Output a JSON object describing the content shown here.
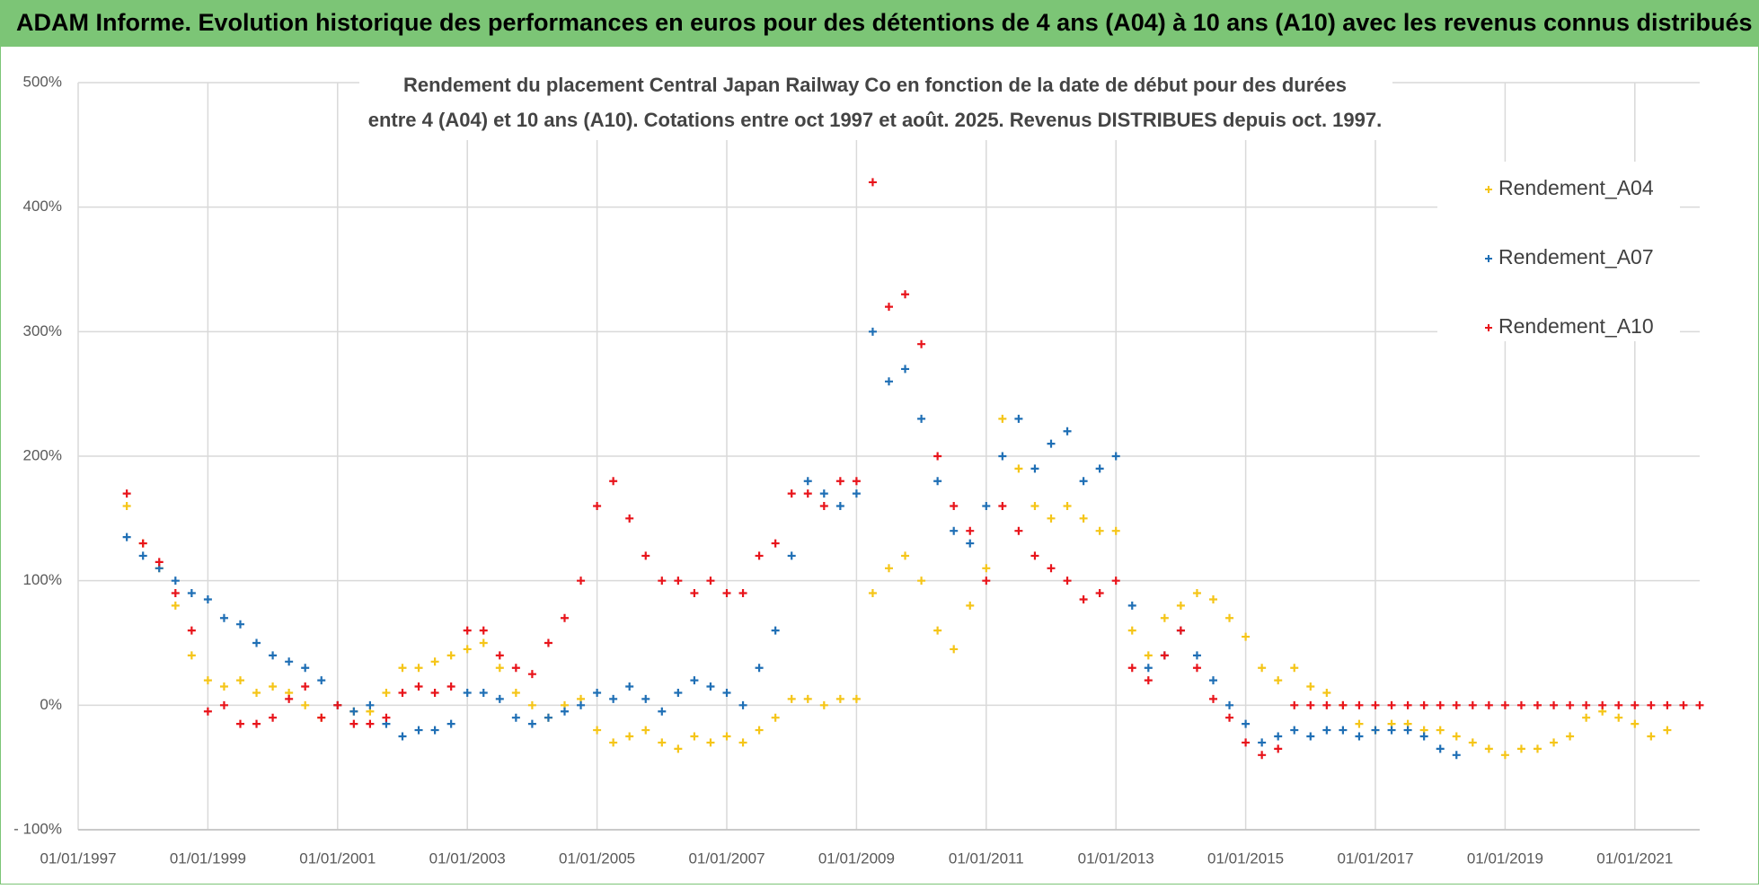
{
  "header": {
    "title": "ADAM Informe. Evolution historique des performances en euros pour des détentions de 4 ans (A04) à 10 ans (A10) avec les revenus connus distribués"
  },
  "chart_data": {
    "type": "scatter",
    "title": "Rendement du placement Central Japan Railway Co en fonction de la date de début pour des durées",
    "subtitle": "entre 4 (A04) et 10 ans (A10).  Cotations entre oct 1997 et août. 2025. Revenus DISTRIBUES depuis oct. 1997.",
    "grid": true,
    "legend": "upper right",
    "xlim": [
      1997,
      2022
    ],
    "xticks": [
      {
        "value": 1997,
        "label": "01/01/1997"
      },
      {
        "value": 1999,
        "label": "01/01/1999"
      },
      {
        "value": 2001,
        "label": "01/01/2001"
      },
      {
        "value": 2003,
        "label": "01/01/2003"
      },
      {
        "value": 2005,
        "label": "01/01/2005"
      },
      {
        "value": 2007,
        "label": "01/01/2007"
      },
      {
        "value": 2009,
        "label": "01/01/2009"
      },
      {
        "value": 2011,
        "label": "01/01/2011"
      },
      {
        "value": 2013,
        "label": "01/01/2013"
      },
      {
        "value": 2015,
        "label": "01/01/2015"
      },
      {
        "value": 2017,
        "label": "01/01/2017"
      },
      {
        "value": 2019,
        "label": "01/01/2019"
      },
      {
        "value": 2021,
        "label": "01/01/2021"
      }
    ],
    "ylim": [
      -100,
      500
    ],
    "yticks": [
      {
        "value": -100,
        "label": "- 100%"
      },
      {
        "value": 0,
        "label": "0%"
      },
      {
        "value": 100,
        "label": "100%"
      },
      {
        "value": 200,
        "label": "200%"
      },
      {
        "value": 300,
        "label": "300%"
      },
      {
        "value": 400,
        "label": "400%"
      },
      {
        "value": 500,
        "label": "500%"
      }
    ],
    "series": [
      {
        "name": "Rendement_A04",
        "color": "#f5c518",
        "x": [
          1997.75,
          1998,
          1998.25,
          1998.5,
          1998.75,
          1999,
          1999.25,
          1999.5,
          1999.75,
          2000,
          2000.25,
          2000.5,
          2000.75,
          2001,
          2001.25,
          2001.5,
          2001.75,
          2002,
          2002.25,
          2002.5,
          2002.75,
          2003,
          2003.25,
          2003.5,
          2003.75,
          2004,
          2004.25,
          2004.5,
          2004.75,
          2005,
          2005.25,
          2005.5,
          2005.75,
          2006,
          2006.25,
          2006.5,
          2006.75,
          2007,
          2007.25,
          2007.5,
          2007.75,
          2008,
          2008.25,
          2008.5,
          2008.75,
          2009,
          2009.25,
          2009.5,
          2009.75,
          2010,
          2010.25,
          2010.5,
          2010.75,
          2011,
          2011.25,
          2011.5,
          2011.75,
          2012,
          2012.25,
          2012.5,
          2012.75,
          2013,
          2013.25,
          2013.5,
          2013.75,
          2014,
          2014.25,
          2014.5,
          2014.75,
          2015,
          2015.25,
          2015.5,
          2015.75,
          2016,
          2016.25,
          2016.5,
          2016.75,
          2017,
          2017.25,
          2017.5,
          2017.75,
          2018,
          2018.25,
          2018.5,
          2018.75,
          2019,
          2019.25,
          2019.5,
          2019.75,
          2020,
          2020.25,
          2020.5,
          2020.75,
          2021,
          2021.25,
          2021.5
        ],
        "values": [
          160,
          130,
          110,
          80,
          40,
          20,
          15,
          20,
          10,
          15,
          10,
          0,
          -10,
          0,
          -5,
          -5,
          10,
          30,
          30,
          35,
          40,
          45,
          50,
          30,
          10,
          0,
          -10,
          0,
          5,
          -20,
          -30,
          -25,
          -20,
          -30,
          -35,
          -25,
          -30,
          -25,
          -30,
          -20,
          -10,
          5,
          5,
          0,
          5,
          5,
          90,
          110,
          120,
          100,
          60,
          45,
          80,
          110,
          230,
          190,
          160,
          150,
          160,
          150,
          140,
          140,
          60,
          40,
          70,
          80,
          90,
          85,
          70,
          55,
          30,
          20,
          30,
          15,
          10,
          0,
          -15,
          -20,
          -15,
          -15,
          -20,
          -20,
          -25,
          -30,
          -35,
          -40,
          -35,
          -35,
          -30,
          -25,
          -10,
          -5,
          -10,
          -15,
          -25,
          -20
        ]
      },
      {
        "name": "Rendement_A07",
        "color": "#1f6fb5",
        "x": [
          1997.75,
          1998,
          1998.25,
          1998.5,
          1998.75,
          1999,
          1999.25,
          1999.5,
          1999.75,
          2000,
          2000.25,
          2000.5,
          2000.75,
          2001,
          2001.25,
          2001.5,
          2001.75,
          2002,
          2002.25,
          2002.5,
          2002.75,
          2003,
          2003.25,
          2003.5,
          2003.75,
          2004,
          2004.25,
          2004.5,
          2004.75,
          2005,
          2005.25,
          2005.5,
          2005.75,
          2006,
          2006.25,
          2006.5,
          2006.75,
          2007,
          2007.25,
          2007.5,
          2007.75,
          2008,
          2008.25,
          2008.5,
          2008.75,
          2009,
          2009.25,
          2009.5,
          2009.75,
          2010,
          2010.25,
          2010.5,
          2010.75,
          2011,
          2011.25,
          2011.5,
          2011.75,
          2012,
          2012.25,
          2012.5,
          2012.75,
          2013,
          2013.25,
          2013.5,
          2013.75,
          2014,
          2014.25,
          2014.5,
          2014.75,
          2015,
          2015.25,
          2015.5,
          2015.75,
          2016,
          2016.25,
          2016.5,
          2016.75,
          2017,
          2017.25,
          2017.5,
          2017.75,
          2018,
          2018.25
        ],
        "values": [
          135,
          120,
          110,
          100,
          90,
          85,
          70,
          65,
          50,
          40,
          35,
          30,
          20,
          0,
          -5,
          0,
          -15,
          -25,
          -20,
          -20,
          -15,
          10,
          10,
          5,
          -10,
          -15,
          -10,
          -5,
          0,
          10,
          5,
          15,
          5,
          -5,
          10,
          20,
          15,
          10,
          0,
          30,
          60,
          120,
          180,
          170,
          160,
          170,
          300,
          260,
          270,
          230,
          180,
          140,
          130,
          160,
          200,
          230,
          190,
          210,
          220,
          180,
          190,
          200,
          80,
          30,
          40,
          60,
          40,
          20,
          0,
          -15,
          -30,
          -25,
          -20,
          -25,
          -20,
          -20,
          -25,
          -20,
          -20,
          -20,
          -25,
          -35,
          -40
        ]
      },
      {
        "name": "Rendement_A10",
        "color": "#e8141b",
        "x": [
          1997.75,
          1998,
          1998.25,
          1998.5,
          1998.75,
          1999,
          1999.25,
          1999.5,
          1999.75,
          2000,
          2000.25,
          2000.5,
          2000.75,
          2001,
          2001.25,
          2001.5,
          2001.75,
          2002,
          2002.25,
          2002.5,
          2002.75,
          2003,
          2003.25,
          2003.5,
          2003.75,
          2004,
          2004.25,
          2004.5,
          2004.75,
          2005,
          2005.25,
          2005.5,
          2005.75,
          2006,
          2006.25,
          2006.5,
          2006.75,
          2007,
          2007.25,
          2007.5,
          2007.75,
          2008,
          2008.25,
          2008.5,
          2008.75,
          2009,
          2009.25,
          2009.5,
          2009.75,
          2010,
          2010.25,
          2010.5,
          2010.75,
          2011,
          2011.25,
          2011.5,
          2011.75,
          2012,
          2012.25,
          2012.5,
          2012.75,
          2013,
          2013.25,
          2013.5,
          2013.75,
          2014,
          2014.25,
          2014.5,
          2014.75,
          2015,
          2015.25,
          2015.5,
          2015.75,
          2016,
          2016.25,
          2016.5,
          2016.75,
          2017,
          2017.25,
          2017.5,
          2017.75,
          2018,
          2018.25,
          2018.5,
          2018.75,
          2019,
          2019.25,
          2019.5,
          2019.75,
          2020,
          2020.25,
          2020.5,
          2020.75,
          2021,
          2021.25,
          2021.5,
          2021.75,
          2022
        ],
        "values": [
          170,
          130,
          115,
          90,
          60,
          -5,
          0,
          -15,
          -15,
          -10,
          5,
          15,
          -10,
          0,
          -15,
          -15,
          -10,
          10,
          15,
          10,
          15,
          60,
          60,
          40,
          30,
          25,
          50,
          70,
          100,
          160,
          180,
          150,
          120,
          100,
          100,
          90,
          100,
          90,
          90,
          120,
          130,
          170,
          170,
          160,
          180,
          180,
          420,
          320,
          330,
          290,
          200,
          160,
          140,
          100,
          160,
          140,
          120,
          110,
          100,
          85,
          90,
          100,
          30,
          20,
          40,
          60,
          30,
          5,
          -10,
          -30,
          -40,
          -35,
          0,
          0,
          0,
          0,
          0,
          0,
          0,
          0,
          0,
          0,
          0,
          0,
          0,
          0,
          0,
          0,
          0,
          0,
          0,
          0,
          0,
          0,
          0,
          0,
          0,
          0
        ]
      }
    ]
  }
}
